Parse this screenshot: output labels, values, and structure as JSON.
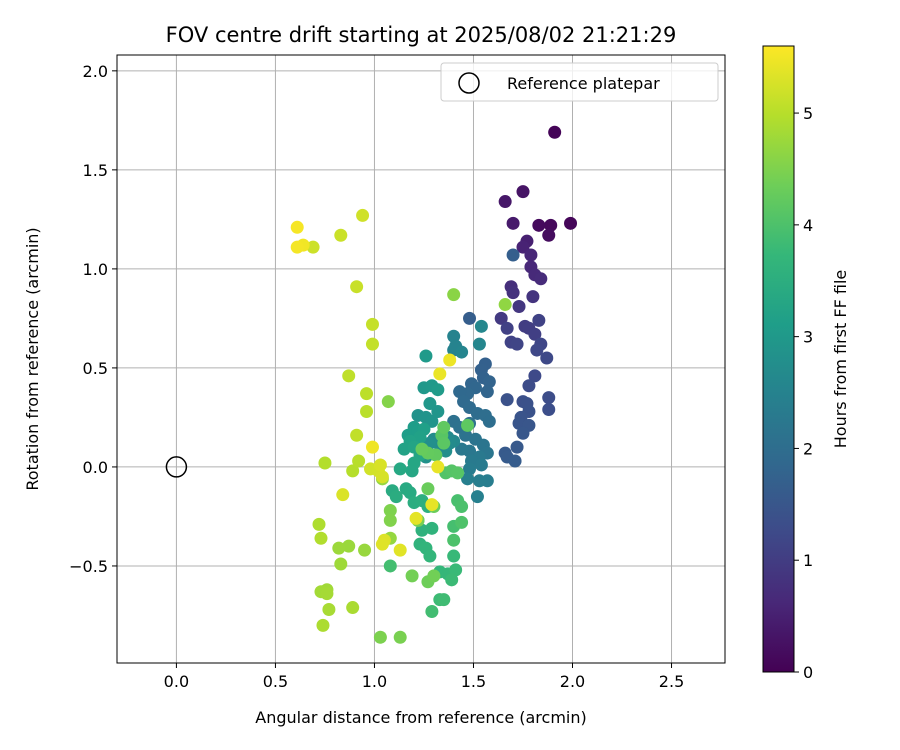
{
  "chart_data": {
    "type": "scatter",
    "title": "FOV centre drift starting at 2025/08/02 21:21:29",
    "xlabel": "Angular distance from reference (arcmin)",
    "ylabel": "Rotation from reference (arcmin)",
    "xlim": [
      -0.3,
      2.77
    ],
    "ylim": [
      -0.99,
      2.08
    ],
    "xticks": [
      0.0,
      0.5,
      1.0,
      1.5,
      2.0,
      2.5
    ],
    "xtick_labels": [
      "0.0",
      "0.5",
      "1.0",
      "1.5",
      "2.0",
      "2.5"
    ],
    "yticks": [
      -0.5,
      0.0,
      0.5,
      1.0,
      1.5,
      2.0
    ],
    "ytick_labels": [
      "−0.5",
      "0.0",
      "0.5",
      "1.0",
      "1.5",
      "2.0"
    ],
    "grid": true,
    "legend": {
      "position": "top-right",
      "entries": [
        "Reference platepar"
      ]
    },
    "reference_point": {
      "x": 0.0,
      "y": 0.0,
      "label": "Reference platepar"
    },
    "colorbar": {
      "label": "Hours from first FF file",
      "range": [
        0,
        5.6
      ],
      "ticks": [
        0,
        1,
        2,
        3,
        4,
        5
      ],
      "tick_labels": [
        "0",
        "1",
        "2",
        "3",
        "4",
        "5"
      ],
      "colormap": "viridis"
    },
    "points": [
      [
        1.91,
        1.69,
        0.05
      ],
      [
        1.99,
        1.23,
        0.08
      ],
      [
        1.89,
        1.22,
        0.12
      ],
      [
        1.83,
        1.22,
        0.15
      ],
      [
        1.88,
        1.17,
        0.18
      ],
      [
        1.75,
        1.39,
        0.3
      ],
      [
        1.66,
        1.34,
        0.35
      ],
      [
        1.7,
        1.23,
        0.4
      ],
      [
        1.77,
        1.14,
        0.5
      ],
      [
        1.75,
        1.11,
        0.55
      ],
      [
        1.79,
        1.07,
        0.6
      ],
      [
        1.79,
        1.01,
        0.62
      ],
      [
        1.81,
        0.97,
        0.66
      ],
      [
        1.84,
        0.95,
        0.7
      ],
      [
        1.69,
        0.91,
        0.75
      ],
      [
        1.7,
        0.88,
        0.8
      ],
      [
        1.8,
        0.86,
        0.85
      ],
      [
        1.73,
        0.81,
        0.9
      ],
      [
        1.64,
        0.75,
        0.95
      ],
      [
        1.76,
        0.71,
        1.0
      ],
      [
        1.78,
        0.7,
        1.02
      ],
      [
        1.81,
        0.67,
        1.05
      ],
      [
        1.67,
        0.7,
        1.08
      ],
      [
        1.83,
        0.74,
        1.1
      ],
      [
        1.69,
        0.63,
        1.12
      ],
      [
        1.72,
        0.62,
        1.15
      ],
      [
        1.84,
        0.62,
        1.18
      ],
      [
        1.82,
        0.59,
        1.2
      ],
      [
        1.87,
        0.55,
        1.22
      ],
      [
        1.81,
        0.46,
        1.25
      ],
      [
        1.78,
        0.41,
        1.28
      ],
      [
        1.88,
        0.35,
        1.3
      ],
      [
        1.88,
        0.29,
        1.33
      ],
      [
        1.75,
        0.33,
        1.36
      ],
      [
        1.77,
        0.32,
        1.38
      ],
      [
        1.67,
        0.34,
        1.4
      ],
      [
        1.78,
        0.28,
        1.42
      ],
      [
        1.74,
        0.25,
        1.45
      ],
      [
        1.73,
        0.22,
        1.48
      ],
      [
        1.78,
        0.21,
        1.5
      ],
      [
        1.75,
        0.17,
        1.52
      ],
      [
        1.72,
        0.1,
        1.55
      ],
      [
        1.66,
        0.07,
        1.58
      ],
      [
        1.67,
        0.05,
        1.6
      ],
      [
        1.71,
        0.03,
        1.62
      ],
      [
        1.48,
        0.75,
        1.65
      ],
      [
        1.7,
        1.07,
        1.68
      ],
      [
        1.56,
        0.52,
        1.7
      ],
      [
        1.54,
        0.49,
        1.72
      ],
      [
        1.55,
        0.45,
        1.75
      ],
      [
        1.58,
        0.43,
        1.78
      ],
      [
        1.57,
        0.38,
        1.8
      ],
      [
        1.49,
        0.42,
        1.82
      ],
      [
        1.51,
        0.4,
        1.85
      ],
      [
        1.47,
        0.37,
        1.88
      ],
      [
        1.43,
        0.38,
        1.9
      ],
      [
        1.45,
        0.33,
        1.92
      ],
      [
        1.48,
        0.3,
        1.95
      ],
      [
        1.52,
        0.27,
        1.98
      ],
      [
        1.56,
        0.26,
        2.0
      ],
      [
        1.58,
        0.23,
        2.02
      ],
      [
        1.48,
        0.22,
        2.05
      ],
      [
        1.4,
        0.23,
        2.08
      ],
      [
        1.43,
        0.2,
        2.1
      ],
      [
        1.46,
        0.16,
        2.12
      ],
      [
        1.51,
        0.14,
        2.15
      ],
      [
        1.55,
        0.11,
        2.18
      ],
      [
        1.57,
        0.07,
        2.2
      ],
      [
        1.48,
        0.08,
        2.22
      ],
      [
        1.44,
        0.09,
        2.25
      ],
      [
        1.53,
        0.05,
        2.28
      ],
      [
        1.49,
        0.03,
        2.3
      ],
      [
        1.54,
        0.01,
        2.32
      ],
      [
        1.48,
        -0.01,
        2.35
      ],
      [
        1.57,
        -0.07,
        2.38
      ],
      [
        1.53,
        -0.07,
        2.4
      ],
      [
        1.47,
        -0.06,
        2.42
      ],
      [
        1.52,
        -0.15,
        2.45
      ],
      [
        1.4,
        0.59,
        2.48
      ],
      [
        1.4,
        0.66,
        2.5
      ],
      [
        1.41,
        0.61,
        2.52
      ],
      [
        1.44,
        0.58,
        2.55
      ],
      [
        1.53,
        0.62,
        2.58
      ],
      [
        1.54,
        0.71,
        2.6
      ],
      [
        1.4,
        0.13,
        2.62
      ],
      [
        1.37,
        0.15,
        2.65
      ],
      [
        1.38,
        0.12,
        2.68
      ],
      [
        1.33,
        0.11,
        2.7
      ],
      [
        1.3,
        0.14,
        2.72
      ],
      [
        1.36,
        0.08,
        2.75
      ],
      [
        1.28,
        0.12,
        2.78
      ],
      [
        1.25,
        0.09,
        2.8
      ],
      [
        1.26,
        0.05,
        2.82
      ],
      [
        1.22,
        0.26,
        2.85
      ],
      [
        1.26,
        0.25,
        2.88
      ],
      [
        1.29,
        0.23,
        2.9
      ],
      [
        1.32,
        0.28,
        2.92
      ],
      [
        1.28,
        0.32,
        2.95
      ],
      [
        1.25,
        0.4,
        2.98
      ],
      [
        1.29,
        0.41,
        3.0
      ],
      [
        1.26,
        0.56,
        3.02
      ],
      [
        1.32,
        0.39,
        3.05
      ],
      [
        1.2,
        0.2,
        3.08
      ],
      [
        1.17,
        0.16,
        3.1
      ],
      [
        1.22,
        0.18,
        3.12
      ],
      [
        1.25,
        0.19,
        3.15
      ],
      [
        1.23,
        0.15,
        3.18
      ],
      [
        1.18,
        0.13,
        3.2
      ],
      [
        1.15,
        0.09,
        3.22
      ],
      [
        1.2,
        0.1,
        3.25
      ],
      [
        1.23,
        0.06,
        3.28
      ],
      [
        1.2,
        0.02,
        3.3
      ],
      [
        1.19,
        -0.02,
        3.32
      ],
      [
        1.13,
        -0.01,
        3.35
      ],
      [
        1.16,
        -0.11,
        3.38
      ],
      [
        1.18,
        -0.13,
        3.4
      ],
      [
        1.09,
        -0.12,
        3.42
      ],
      [
        1.11,
        -0.15,
        3.45
      ],
      [
        1.2,
        -0.18,
        3.48
      ],
      [
        1.24,
        -0.17,
        3.5
      ],
      [
        1.27,
        -0.2,
        3.52
      ],
      [
        1.22,
        -0.27,
        3.55
      ],
      [
        1.24,
        -0.32,
        3.58
      ],
      [
        1.29,
        -0.31,
        3.6
      ],
      [
        1.23,
        -0.39,
        3.62
      ],
      [
        1.26,
        -0.41,
        3.65
      ],
      [
        1.28,
        -0.45,
        3.68
      ],
      [
        1.33,
        -0.53,
        3.7
      ],
      [
        1.37,
        -0.54,
        3.72
      ],
      [
        1.4,
        -0.45,
        3.75
      ],
      [
        1.41,
        -0.52,
        3.78
      ],
      [
        1.39,
        -0.57,
        3.8
      ],
      [
        1.33,
        -0.67,
        3.82
      ],
      [
        1.35,
        -0.67,
        3.85
      ],
      [
        1.29,
        -0.73,
        3.88
      ],
      [
        1.08,
        -0.5,
        3.9
      ],
      [
        1.4,
        -0.3,
        3.92
      ],
      [
        1.42,
        -0.17,
        3.95
      ],
      [
        1.44,
        -0.2,
        3.98
      ],
      [
        1.4,
        -0.37,
        4.0
      ],
      [
        1.44,
        -0.28,
        4.02
      ],
      [
        1.36,
        -0.03,
        4.05
      ],
      [
        1.39,
        -0.02,
        4.08
      ],
      [
        1.42,
        -0.03,
        4.1
      ],
      [
        1.34,
        0.16,
        4.12
      ],
      [
        1.35,
        0.12,
        4.15
      ],
      [
        1.47,
        0.21,
        4.18
      ],
      [
        1.35,
        0.2,
        4.2
      ],
      [
        1.31,
        0.06,
        4.22
      ],
      [
        1.27,
        0.07,
        4.25
      ],
      [
        1.24,
        0.09,
        4.28
      ],
      [
        1.27,
        -0.11,
        4.3
      ],
      [
        1.3,
        -0.2,
        4.32
      ],
      [
        1.27,
        -0.58,
        4.35
      ],
      [
        1.3,
        -0.55,
        4.38
      ],
      [
        1.19,
        -0.55,
        4.4
      ],
      [
        1.22,
        -0.27,
        4.42
      ],
      [
        1.13,
        -0.86,
        4.45
      ],
      [
        1.03,
        -0.86,
        4.48
      ],
      [
        1.08,
        -0.22,
        4.5
      ],
      [
        1.08,
        -0.27,
        4.52
      ],
      [
        1.07,
        0.33,
        4.55
      ],
      [
        1.4,
        0.87,
        4.6
      ],
      [
        1.66,
        0.82,
        4.65
      ],
      [
        1.04,
        -0.06,
        4.68
      ],
      [
        1.08,
        -0.36,
        4.7
      ],
      [
        0.95,
        -0.42,
        4.72
      ],
      [
        0.87,
        -0.4,
        4.74
      ],
      [
        0.82,
        -0.41,
        4.76
      ],
      [
        0.83,
        -0.49,
        4.78
      ],
      [
        0.76,
        -0.62,
        4.8
      ],
      [
        0.73,
        -0.63,
        4.82
      ],
      [
        0.76,
        -0.64,
        4.84
      ],
      [
        0.77,
        -0.72,
        4.86
      ],
      [
        0.89,
        -0.71,
        4.88
      ],
      [
        0.74,
        -0.8,
        4.9
      ],
      [
        0.72,
        -0.29,
        4.92
      ],
      [
        0.73,
        -0.36,
        4.94
      ],
      [
        0.75,
        0.02,
        4.96
      ],
      [
        0.89,
        -0.02,
        4.98
      ],
      [
        0.92,
        0.03,
        5.0
      ],
      [
        0.96,
        0.28,
        5.02
      ],
      [
        0.96,
        0.37,
        5.04
      ],
      [
        0.87,
        0.46,
        5.06
      ],
      [
        0.91,
        0.16,
        5.08
      ],
      [
        0.99,
        0.62,
        5.1
      ],
      [
        0.99,
        0.72,
        5.12
      ],
      [
        0.91,
        0.91,
        5.14
      ],
      [
        0.83,
        1.17,
        5.16
      ],
      [
        0.69,
        1.11,
        5.18
      ],
      [
        0.94,
        1.27,
        5.2
      ],
      [
        0.98,
        -0.01,
        5.22
      ],
      [
        1.02,
        -0.02,
        5.24
      ],
      [
        1.04,
        -0.05,
        5.26
      ],
      [
        1.03,
        0.01,
        5.28
      ],
      [
        0.84,
        -0.14,
        5.3
      ],
      [
        1.05,
        -0.37,
        5.32
      ],
      [
        1.04,
        -0.39,
        5.34
      ],
      [
        1.13,
        -0.42,
        5.36
      ],
      [
        1.21,
        -0.26,
        5.38
      ],
      [
        1.29,
        -0.19,
        5.4
      ],
      [
        1.32,
        0.0,
        5.42
      ],
      [
        1.33,
        0.47,
        5.44
      ],
      [
        1.38,
        0.54,
        5.46
      ],
      [
        0.99,
        0.1,
        5.48
      ],
      [
        0.64,
        1.12,
        5.5
      ],
      [
        0.61,
        1.11,
        5.52
      ],
      [
        0.61,
        1.21,
        5.54
      ]
    ]
  }
}
